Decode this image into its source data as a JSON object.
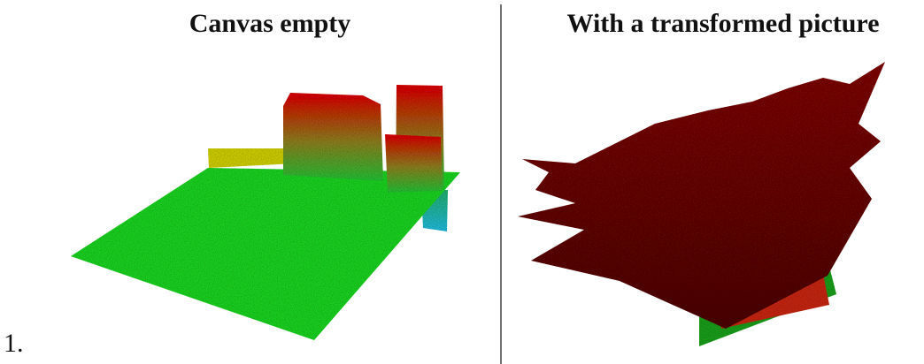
{
  "figure": {
    "label": "1.",
    "panels": [
      {
        "title": "Canvas empty"
      },
      {
        "title": "With a transformed picture"
      }
    ]
  }
}
